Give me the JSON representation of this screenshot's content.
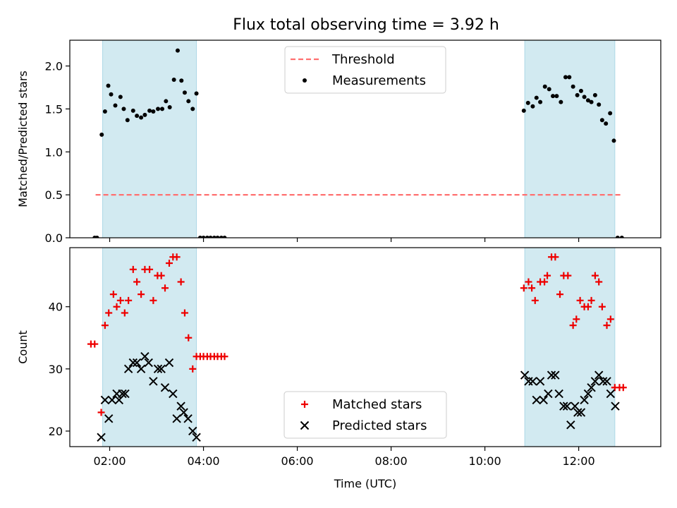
{
  "title": "Flux total observing time = 3.92 h",
  "colors": {
    "threshold": "#ff7070",
    "matched": "#ee0000",
    "predicted": "#000000",
    "span": "#add8e6",
    "measure": "#000000"
  },
  "chart_data": [
    {
      "type": "scatter",
      "ylabel": "Matched/Predicted stars",
      "xlim": [
        1.15,
        13.75
      ],
      "ylim": [
        0,
        2.3
      ],
      "yticks": [
        {
          "v": 0.0,
          "label": "0.0"
        },
        {
          "v": 0.5,
          "label": "0.5"
        },
        {
          "v": 1.0,
          "label": "1.0"
        },
        {
          "v": 1.5,
          "label": "1.5"
        },
        {
          "v": 2.0,
          "label": "2.0"
        }
      ],
      "spans": [
        [
          1.85,
          3.85
        ],
        [
          10.85,
          12.77
        ]
      ],
      "threshold": {
        "value": 0.5,
        "x": [
          1.7,
          12.9
        ]
      },
      "legend": {
        "position": "upper center",
        "threshold_label": "Threshold",
        "measurements_label": "Measurements"
      },
      "measurements": [
        [
          1.68,
          0
        ],
        [
          1.73,
          0
        ],
        [
          1.83,
          1.2
        ],
        [
          1.9,
          1.47
        ],
        [
          1.97,
          1.77
        ],
        [
          2.03,
          1.67
        ],
        [
          2.12,
          1.54
        ],
        [
          2.23,
          1.64
        ],
        [
          2.3,
          1.5
        ],
        [
          2.38,
          1.37
        ],
        [
          2.5,
          1.48
        ],
        [
          2.58,
          1.42
        ],
        [
          2.67,
          1.4
        ],
        [
          2.75,
          1.43
        ],
        [
          2.85,
          1.48
        ],
        [
          2.93,
          1.47
        ],
        [
          3.03,
          1.5
        ],
        [
          3.12,
          1.5
        ],
        [
          3.2,
          1.59
        ],
        [
          3.28,
          1.52
        ],
        [
          3.37,
          1.84
        ],
        [
          3.45,
          2.18
        ],
        [
          3.53,
          1.83
        ],
        [
          3.6,
          1.69
        ],
        [
          3.68,
          1.59
        ],
        [
          3.77,
          1.5
        ],
        [
          3.85,
          1.68
        ],
        [
          3.93,
          0
        ],
        [
          4.0,
          0
        ],
        [
          4.08,
          0
        ],
        [
          4.15,
          0
        ],
        [
          4.23,
          0
        ],
        [
          4.3,
          0
        ],
        [
          4.38,
          0
        ],
        [
          4.45,
          0
        ],
        [
          10.83,
          1.48
        ],
        [
          10.92,
          1.57
        ],
        [
          11.02,
          1.53
        ],
        [
          11.1,
          1.63
        ],
        [
          11.18,
          1.58
        ],
        [
          11.28,
          1.76
        ],
        [
          11.37,
          1.73
        ],
        [
          11.45,
          1.65
        ],
        [
          11.53,
          1.65
        ],
        [
          11.62,
          1.58
        ],
        [
          11.72,
          1.87
        ],
        [
          11.8,
          1.87
        ],
        [
          11.88,
          1.76
        ],
        [
          11.97,
          1.66
        ],
        [
          12.05,
          1.71
        ],
        [
          12.12,
          1.64
        ],
        [
          12.2,
          1.6
        ],
        [
          12.27,
          1.58
        ],
        [
          12.35,
          1.66
        ],
        [
          12.43,
          1.55
        ],
        [
          12.5,
          1.37
        ],
        [
          12.58,
          1.33
        ],
        [
          12.67,
          1.45
        ],
        [
          12.75,
          1.13
        ],
        [
          12.83,
          0
        ],
        [
          12.92,
          0
        ]
      ]
    },
    {
      "type": "scatter",
      "ylabel": "Count",
      "xlabel": "Time (UTC)",
      "xlim": [
        1.15,
        13.75
      ],
      "ylim": [
        17.5,
        49.5
      ],
      "yticks": [
        {
          "v": 20,
          "label": "20"
        },
        {
          "v": 30,
          "label": "30"
        },
        {
          "v": 40,
          "label": "40"
        }
      ],
      "xticks": [
        {
          "v": 2,
          "label": "02:00"
        },
        {
          "v": 4,
          "label": "04:00"
        },
        {
          "v": 6,
          "label": "06:00"
        },
        {
          "v": 8,
          "label": "08:00"
        },
        {
          "v": 10,
          "label": "10:00"
        },
        {
          "v": 12,
          "label": "12:00"
        }
      ],
      "spans": [
        [
          1.85,
          3.85
        ],
        [
          10.85,
          12.77
        ]
      ],
      "legend": {
        "position": "lower center",
        "matched_label": "Matched stars",
        "predicted_label": "Predicted stars"
      },
      "matched": [
        [
          1.6,
          34
        ],
        [
          1.68,
          34
        ],
        [
          1.82,
          23
        ],
        [
          1.9,
          37
        ],
        [
          1.98,
          39
        ],
        [
          2.08,
          42
        ],
        [
          2.15,
          40
        ],
        [
          2.23,
          41
        ],
        [
          2.32,
          39
        ],
        [
          2.4,
          41
        ],
        [
          2.5,
          46
        ],
        [
          2.58,
          44
        ],
        [
          2.67,
          42
        ],
        [
          2.75,
          46
        ],
        [
          2.85,
          46
        ],
        [
          2.93,
          41
        ],
        [
          3.02,
          45
        ],
        [
          3.1,
          45
        ],
        [
          3.18,
          43
        ],
        [
          3.27,
          47
        ],
        [
          3.35,
          48
        ],
        [
          3.43,
          48
        ],
        [
          3.52,
          44
        ],
        [
          3.6,
          39
        ],
        [
          3.68,
          35
        ],
        [
          3.77,
          30
        ],
        [
          3.85,
          32
        ],
        [
          3.93,
          32
        ],
        [
          4.0,
          32
        ],
        [
          4.08,
          32
        ],
        [
          4.15,
          32
        ],
        [
          4.23,
          32
        ],
        [
          4.3,
          32
        ],
        [
          4.38,
          32
        ],
        [
          4.45,
          32
        ],
        [
          10.83,
          43
        ],
        [
          10.93,
          44
        ],
        [
          11.0,
          43
        ],
        [
          11.07,
          41
        ],
        [
          11.18,
          44
        ],
        [
          11.27,
          44
        ],
        [
          11.33,
          45
        ],
        [
          11.42,
          48
        ],
        [
          11.5,
          48
        ],
        [
          11.6,
          42
        ],
        [
          11.68,
          45
        ],
        [
          11.77,
          45
        ],
        [
          11.88,
          37
        ],
        [
          11.95,
          38
        ],
        [
          12.03,
          41
        ],
        [
          12.12,
          40
        ],
        [
          12.2,
          40
        ],
        [
          12.27,
          41
        ],
        [
          12.35,
          45
        ],
        [
          12.43,
          44
        ],
        [
          12.5,
          40
        ],
        [
          12.6,
          37
        ],
        [
          12.68,
          38
        ],
        [
          12.77,
          27
        ],
        [
          12.87,
          27
        ],
        [
          12.95,
          27
        ]
      ],
      "predicted": [
        [
          1.82,
          19
        ],
        [
          1.9,
          25
        ],
        [
          1.98,
          22
        ],
        [
          2.05,
          25
        ],
        [
          2.15,
          26
        ],
        [
          2.2,
          25
        ],
        [
          2.27,
          26
        ],
        [
          2.33,
          26
        ],
        [
          2.4,
          30
        ],
        [
          2.5,
          31
        ],
        [
          2.58,
          31
        ],
        [
          2.67,
          30
        ],
        [
          2.75,
          32
        ],
        [
          2.83,
          31
        ],
        [
          2.93,
          28
        ],
        [
          3.03,
          30
        ],
        [
          3.1,
          30
        ],
        [
          3.18,
          27
        ],
        [
          3.27,
          31
        ],
        [
          3.35,
          26
        ],
        [
          3.43,
          22
        ],
        [
          3.52,
          24
        ],
        [
          3.58,
          23
        ],
        [
          3.67,
          22
        ],
        [
          3.77,
          20
        ],
        [
          3.85,
          19
        ],
        [
          10.85,
          29
        ],
        [
          10.93,
          28
        ],
        [
          11.02,
          28
        ],
        [
          11.1,
          25
        ],
        [
          11.18,
          28
        ],
        [
          11.25,
          25
        ],
        [
          11.35,
          26
        ],
        [
          11.42,
          29
        ],
        [
          11.5,
          29
        ],
        [
          11.58,
          26
        ],
        [
          11.68,
          24
        ],
        [
          11.75,
          24
        ],
        [
          11.83,
          21
        ],
        [
          11.92,
          24
        ],
        [
          11.98,
          23
        ],
        [
          12.05,
          23
        ],
        [
          12.12,
          25
        ],
        [
          12.2,
          26
        ],
        [
          12.27,
          27
        ],
        [
          12.35,
          28
        ],
        [
          12.43,
          29
        ],
        [
          12.52,
          28
        ],
        [
          12.6,
          28
        ],
        [
          12.68,
          26
        ],
        [
          12.78,
          24
        ]
      ]
    }
  ]
}
